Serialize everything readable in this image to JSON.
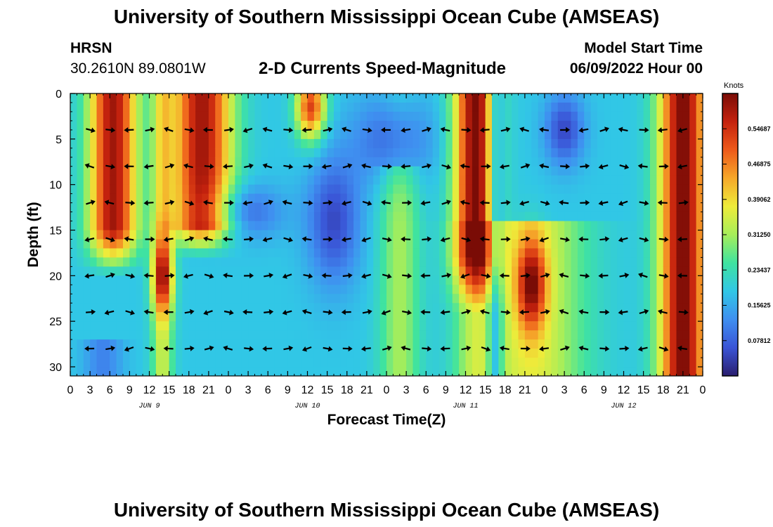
{
  "header": {
    "title": "University of Southern Mississippi Ocean Cube (AMSEAS)",
    "station": "HRSN",
    "coords": "30.2610N  89.0801W",
    "chart_title": "2-D Currents Speed-Magnitude",
    "start_label": "Model Start Time",
    "start_value": "06/09/2022 Hour 00"
  },
  "footer": {
    "title": "University of Southern Mississippi Ocean Cube (AMSEAS)"
  },
  "colors": {
    "scale": [
      "#2a1e6e",
      "#3a54d6",
      "#3f8ff0",
      "#31c7e6",
      "#3fe3a0",
      "#a6ee5a",
      "#eeec3a",
      "#f6a82a",
      "#ee5a1a",
      "#c4220e",
      "#7a0c06"
    ]
  },
  "chart_data": {
    "type": "heatmap",
    "title": "2-D Currents Speed-Magnitude",
    "xlabel": "Forecast Time(Z)",
    "ylabel": "Depth (ft)",
    "xlim": [
      0,
      96
    ],
    "ylim": [
      0,
      31
    ],
    "x_tick_labels": [
      "0",
      "3",
      "6",
      "9",
      "12",
      "15",
      "18",
      "21",
      "0",
      "3",
      "6",
      "9",
      "12",
      "15",
      "18",
      "21",
      "0",
      "3",
      "6",
      "9",
      "12",
      "15",
      "18",
      "21",
      "0",
      "3",
      "6",
      "9",
      "12",
      "15",
      "18",
      "21",
      "0"
    ],
    "y_ticks": [
      0,
      5,
      10,
      15,
      20,
      25,
      30
    ],
    "day_labels": [
      {
        "label": "JUN 9",
        "hour": 12
      },
      {
        "label": "JUN 10",
        "hour": 36
      },
      {
        "label": "JUN 11",
        "hour": 60
      },
      {
        "label": "JUN 12",
        "hour": 84
      }
    ],
    "colorbar": {
      "title": "Knots",
      "ticks": [
        0.07812,
        0.15625,
        0.23437,
        0.3125,
        0.39062,
        0.46875,
        0.54687
      ],
      "tick_labels": [
        "0.07812",
        "0.15625",
        "0.23437",
        "0.31250",
        "0.39062",
        "0.46875",
        "0.54687"
      ],
      "range": [
        0,
        0.625
      ]
    },
    "vector_depths": [
      4,
      8,
      12,
      16,
      20,
      24,
      28
    ],
    "vector_hours": [
      3,
      6,
      9,
      12,
      15,
      18,
      21,
      24,
      27,
      30,
      33,
      36,
      39,
      42,
      45,
      48,
      51,
      54,
      57,
      60,
      63,
      66,
      69,
      72,
      75,
      78,
      81,
      84,
      87,
      90,
      93
    ]
  }
}
